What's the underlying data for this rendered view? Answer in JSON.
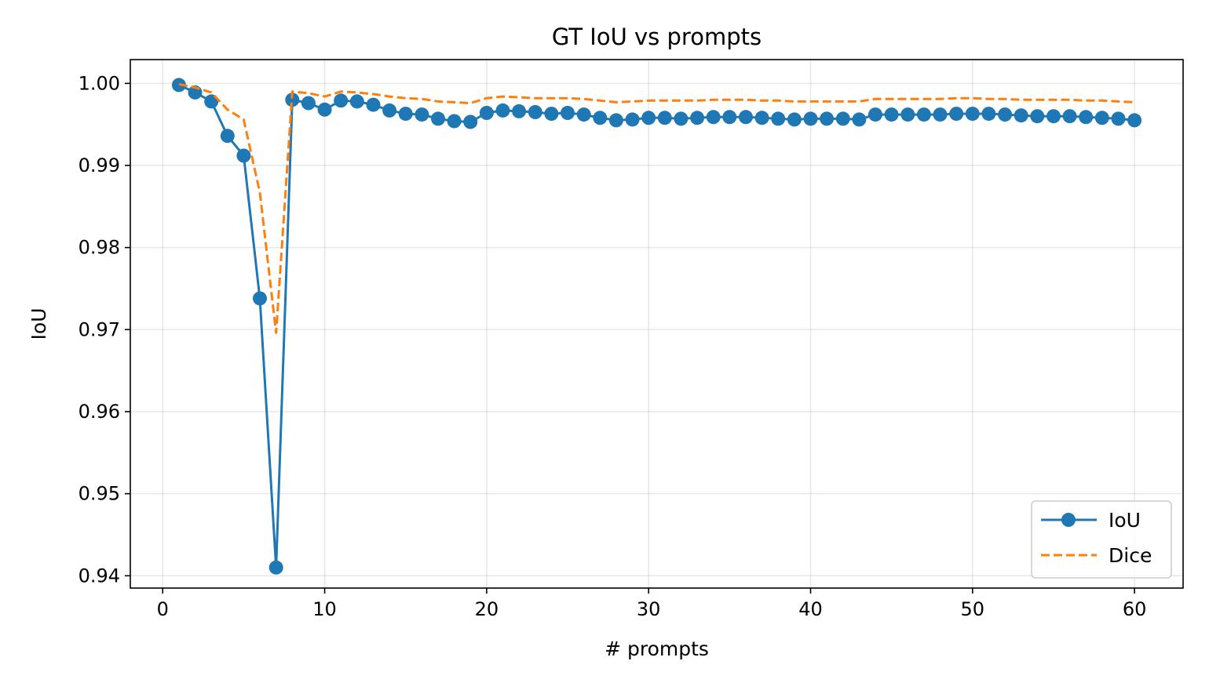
{
  "chart_data": {
    "type": "line",
    "title": "GT IoU vs prompts",
    "xlabel": "# prompts",
    "ylabel": "IoU",
    "xlim": [
      -2,
      63
    ],
    "ylim": [
      0.9385,
      1.0029
    ],
    "xticks": [
      0,
      10,
      20,
      30,
      40,
      50,
      60
    ],
    "yticks": [
      0.94,
      0.95,
      0.96,
      0.97,
      0.98,
      0.99,
      1.0
    ],
    "ytick_labels": [
      "0.94",
      "0.95",
      "0.96",
      "0.97",
      "0.98",
      "0.99",
      "1.00"
    ],
    "grid": true,
    "legend": "lower-right",
    "x": [
      1,
      2,
      3,
      4,
      5,
      6,
      7,
      8,
      9,
      10,
      11,
      12,
      13,
      14,
      15,
      16,
      17,
      18,
      19,
      20,
      21,
      22,
      23,
      24,
      25,
      26,
      27,
      28,
      29,
      30,
      31,
      32,
      33,
      34,
      35,
      36,
      37,
      38,
      39,
      40,
      41,
      42,
      43,
      44,
      45,
      46,
      47,
      48,
      49,
      50,
      51,
      52,
      53,
      54,
      55,
      56,
      57,
      58,
      59,
      60
    ],
    "series": [
      {
        "name": "IoU",
        "color": "#1f77b4",
        "style": "solid",
        "marker": "circle",
        "values": [
          0.9998,
          0.9989,
          0.9978,
          0.9936,
          0.9912,
          0.9738,
          0.941,
          0.998,
          0.9976,
          0.9968,
          0.9979,
          0.9978,
          0.9974,
          0.9967,
          0.9963,
          0.9962,
          0.9957,
          0.9954,
          0.9953,
          0.9964,
          0.9967,
          0.9966,
          0.9965,
          0.9963,
          0.9964,
          0.9962,
          0.9958,
          0.9955,
          0.9956,
          0.9958,
          0.9958,
          0.9957,
          0.9958,
          0.9959,
          0.9959,
          0.9959,
          0.9958,
          0.9957,
          0.9956,
          0.9957,
          0.9957,
          0.9957,
          0.9956,
          0.9962,
          0.9962,
          0.9962,
          0.9962,
          0.9962,
          0.9963,
          0.9963,
          0.9963,
          0.9962,
          0.9961,
          0.996,
          0.996,
          0.996,
          0.9959,
          0.9958,
          0.9957,
          0.9955
        ]
      },
      {
        "name": "Dice",
        "color": "#ff7f0e",
        "style": "dashed",
        "marker": "none",
        "values": [
          0.9999,
          0.9995,
          0.9989,
          0.9968,
          0.9956,
          0.9867,
          0.9696,
          0.999,
          0.9988,
          0.9984,
          0.999,
          0.9989,
          0.9987,
          0.9984,
          0.9982,
          0.9981,
          0.9978,
          0.9977,
          0.9976,
          0.9982,
          0.9984,
          0.9983,
          0.9982,
          0.9982,
          0.9982,
          0.9981,
          0.9979,
          0.9977,
          0.9978,
          0.9979,
          0.9979,
          0.9979,
          0.9979,
          0.998,
          0.998,
          0.998,
          0.9979,
          0.9979,
          0.9978,
          0.9978,
          0.9978,
          0.9978,
          0.9978,
          0.9981,
          0.9981,
          0.9981,
          0.9981,
          0.9981,
          0.9982,
          0.9982,
          0.9981,
          0.9981,
          0.998,
          0.998,
          0.998,
          0.998,
          0.9979,
          0.9979,
          0.9978,
          0.9977
        ]
      }
    ]
  }
}
